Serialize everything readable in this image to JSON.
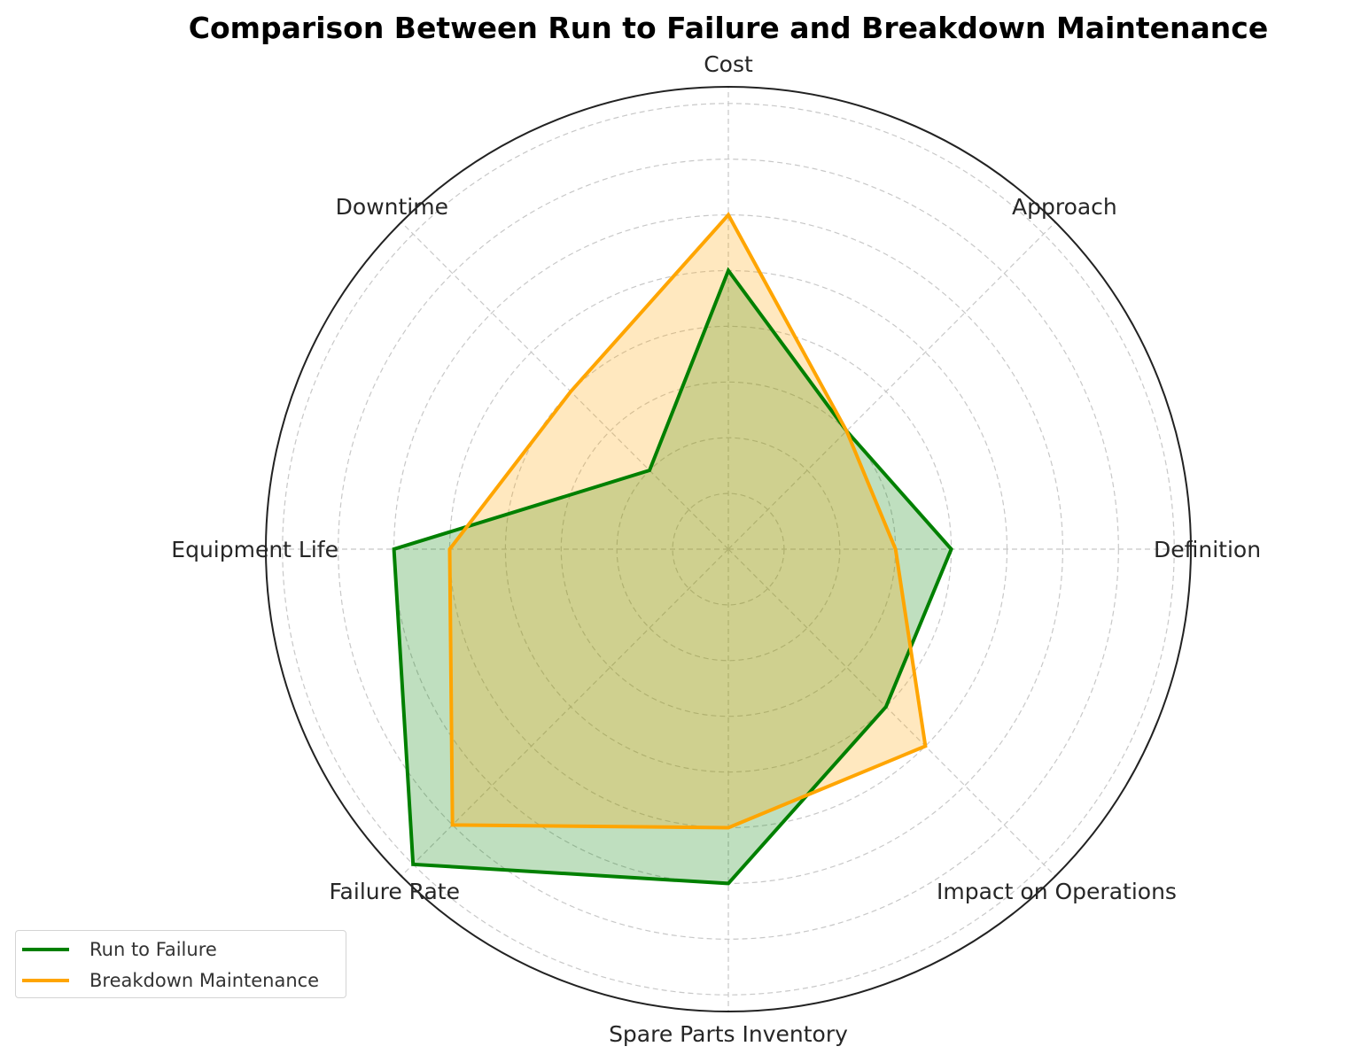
{
  "chart_data": {
    "type": "radar",
    "title": "Comparison Between Run to Failure and Breakdown Maintenance",
    "categories": [
      "Definition",
      "Approach",
      "Cost",
      "Downtime",
      "Equipment Life",
      "Failure Rate",
      "Spare Parts Inventory",
      "Impact on Operations"
    ],
    "series": [
      {
        "name": "Run to Failure",
        "color": "#008000",
        "values": [
          4,
          3,
          5,
          2,
          6,
          8,
          6,
          4
        ]
      },
      {
        "name": "Breakdown Maintenance",
        "color": "#ffa500",
        "values": [
          3,
          3,
          6,
          4,
          5,
          7,
          5,
          5
        ]
      }
    ],
    "rlim": [
      0,
      8.3
    ],
    "rgrid": [
      1,
      2,
      3,
      4,
      5,
      6,
      7,
      8
    ],
    "grid": true,
    "fill_alpha": 0.25,
    "legend_position": "lower left"
  },
  "title": "Comparison Between Run to Failure and Breakdown Maintenance",
  "legend": {
    "items": [
      {
        "label": "Run to Failure",
        "color": "#008000"
      },
      {
        "label": "Breakdown Maintenance",
        "color": "#ffa500"
      }
    ]
  },
  "axes": {
    "labels": [
      "Definition",
      "Approach",
      "Cost",
      "Downtime",
      "Equipment Life",
      "Failure Rate",
      "Spare Parts Inventory",
      "Impact on Operations"
    ]
  }
}
